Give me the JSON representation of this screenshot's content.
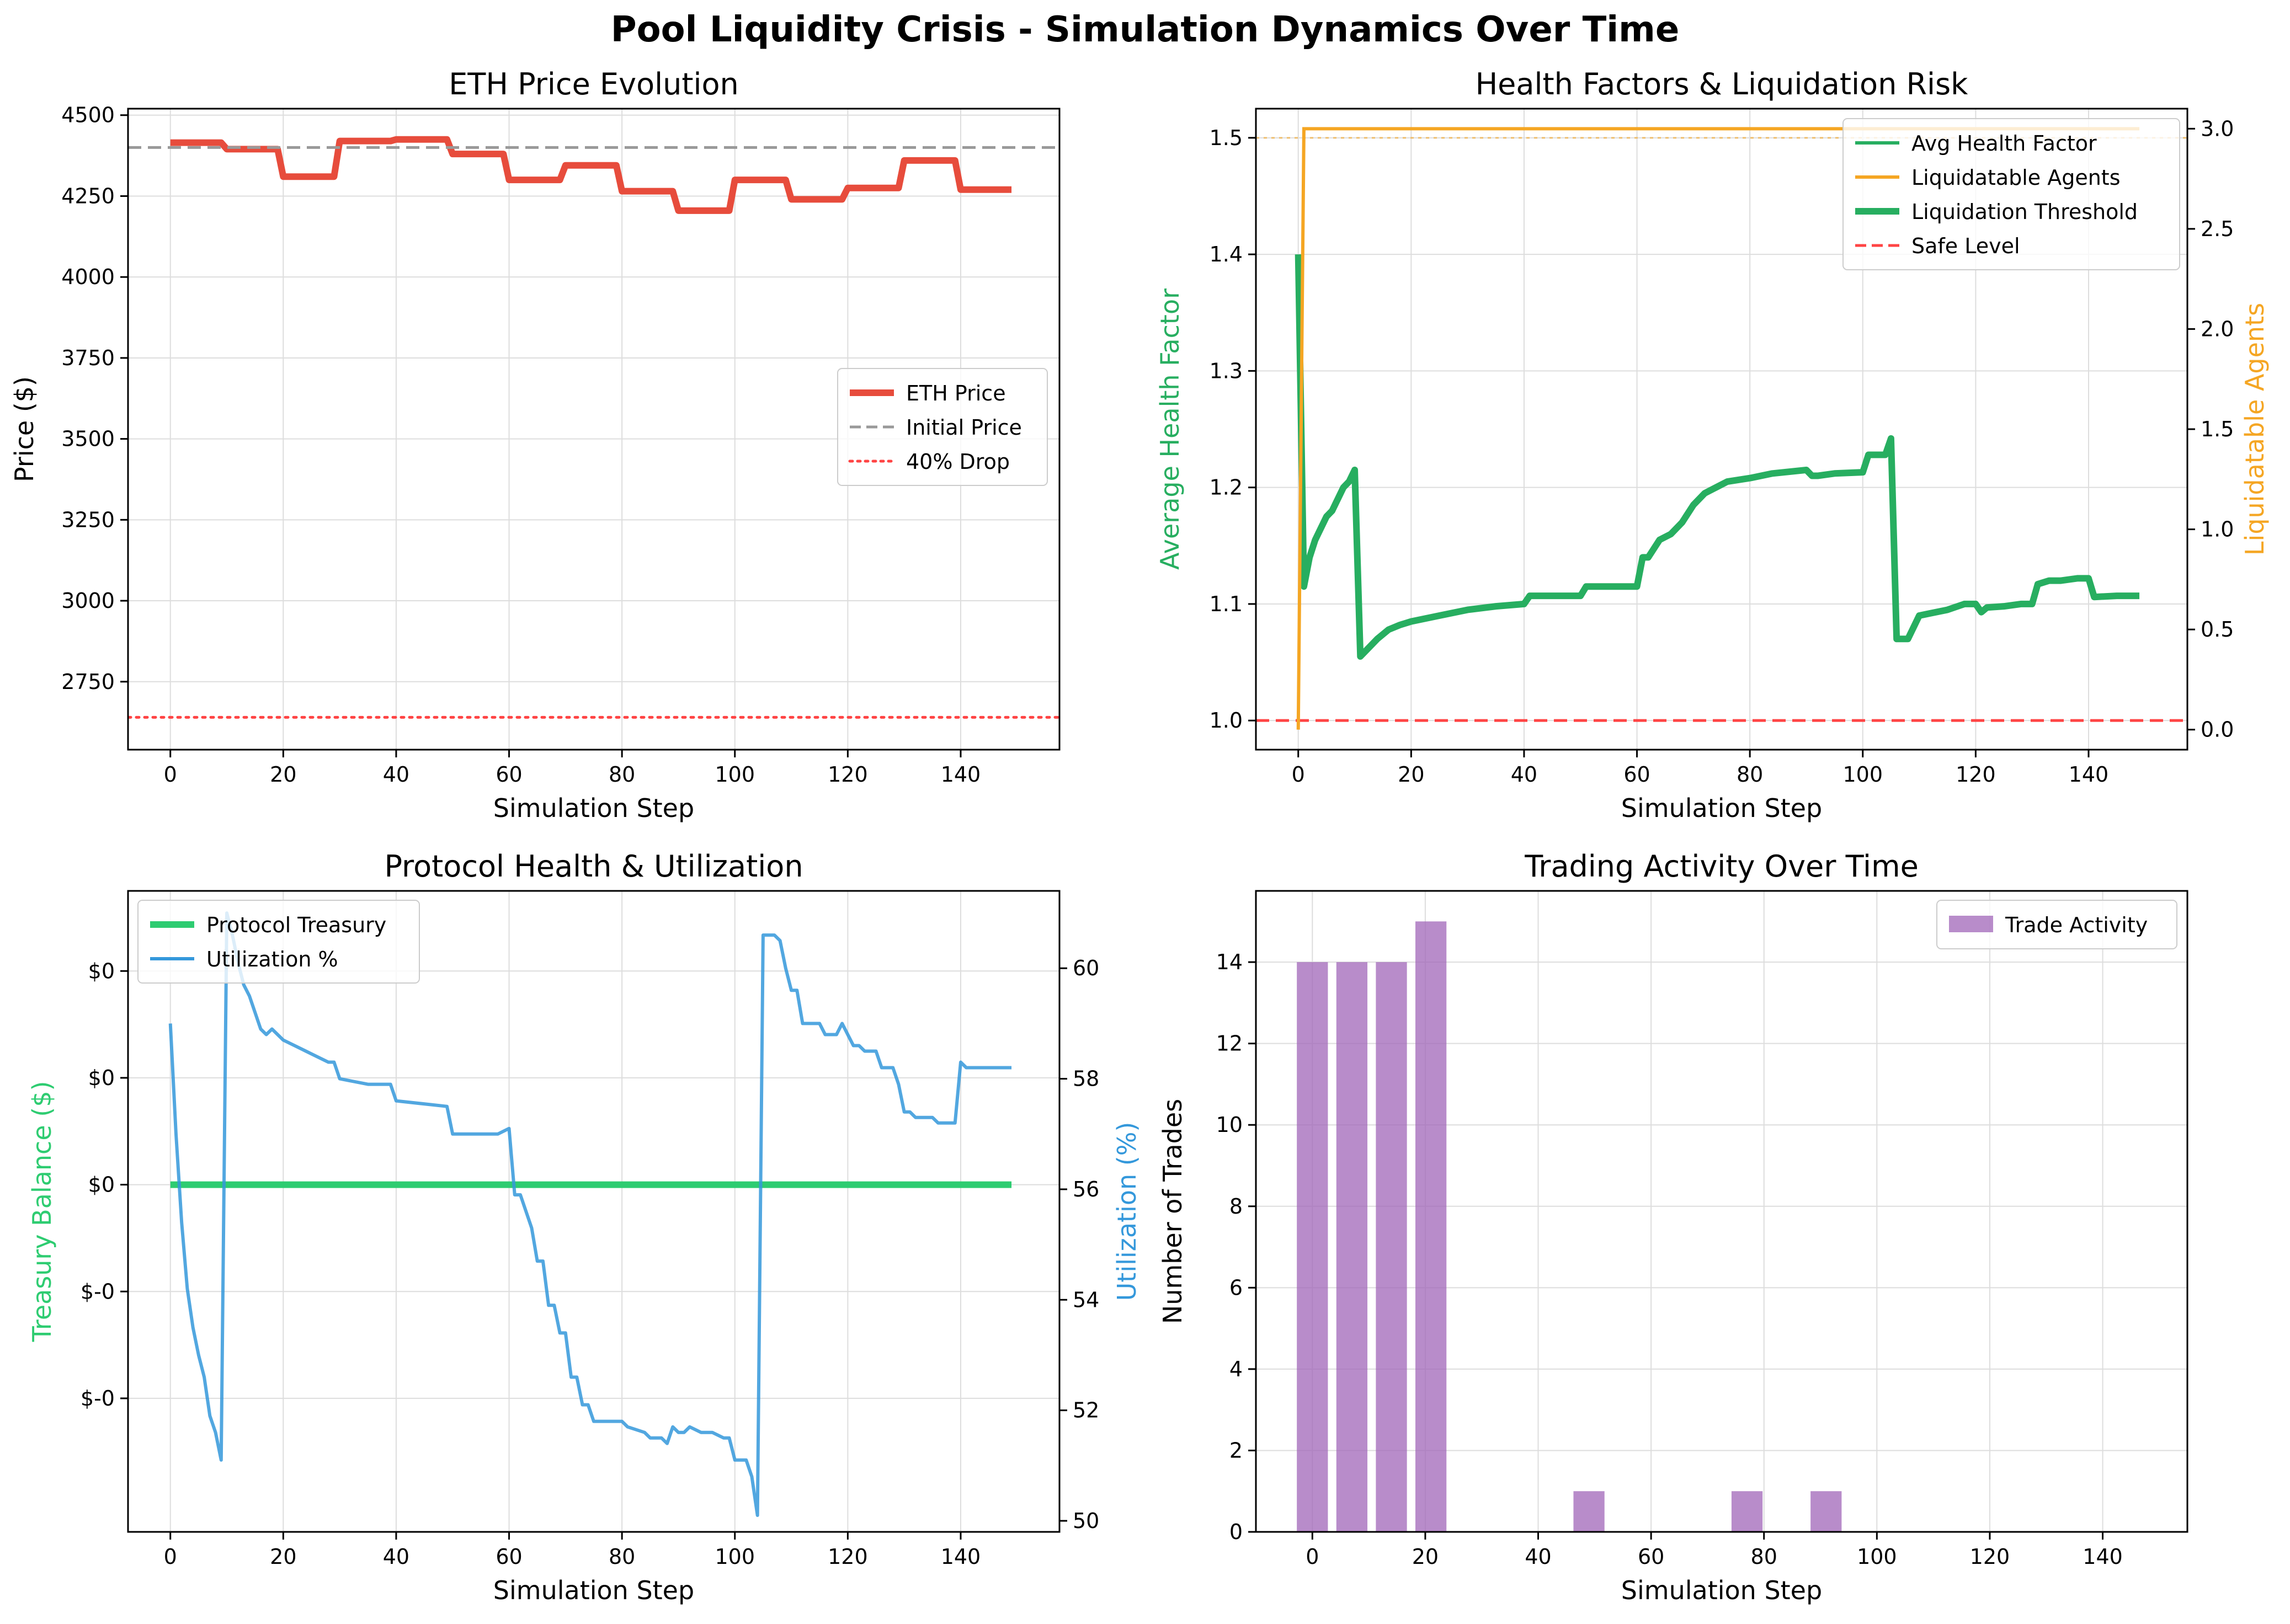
{
  "title": "Pool Liquidity Crisis - Simulation Dynamics Over Time",
  "colors": {
    "eth_price": "#e74c3c",
    "initial_price": "#999999",
    "drop_line": "#ff4444",
    "health": "#27ae60",
    "liquidatable": "#f5a623",
    "safe_level": "#ff4444",
    "treasury": "#2ecc71",
    "utilization": "#3498db",
    "trades": "#a066b8",
    "grid": "#dddddd"
  },
  "chart_data": [
    {
      "id": "eth",
      "type": "line",
      "title": "ETH Price Evolution",
      "xlabel": "Simulation Step",
      "ylabel": "Price ($)",
      "xlim": [
        -7.5,
        157.5
      ],
      "ylim": [
        2540,
        4520
      ],
      "x_ticks": [
        0,
        20,
        40,
        60,
        80,
        100,
        120,
        140
      ],
      "y_ticks": [
        2750,
        3000,
        3250,
        3500,
        3750,
        4000,
        4250,
        4500
      ],
      "y_tick_labels": [
        "2750",
        "3000",
        "3250",
        "3500",
        "3750",
        "4000",
        "4250",
        "4500"
      ],
      "grid": true,
      "legend_position": "center-right",
      "series": [
        {
          "name": "ETH Price",
          "style": "solid",
          "steps": [
            [
              0,
              4415
            ],
            [
              10,
              4395
            ],
            [
              20,
              4310
            ],
            [
              30,
              4420
            ],
            [
              40,
              4425
            ],
            [
              50,
              4380
            ],
            [
              60,
              4300
            ],
            [
              70,
              4345
            ],
            [
              80,
              4265
            ],
            [
              90,
              4205
            ],
            [
              100,
              4300
            ],
            [
              110,
              4240
            ],
            [
              120,
              4275
            ],
            [
              130,
              4360
            ],
            [
              140,
              4270
            ]
          ],
          "x_end": 149
        },
        {
          "name": "Initial Price",
          "style": "dashed",
          "y": 4400
        },
        {
          "name": "40% Drop",
          "style": "dotted",
          "y": 2640
        }
      ]
    },
    {
      "id": "health",
      "type": "line",
      "title": "Health Factors & Liquidation Risk",
      "xlabel": "Simulation Step",
      "ylabel": "Average Health Factor",
      "ylabel_right": "Liquidatable Agents",
      "xlim": [
        -7.5,
        157.5
      ],
      "ylim": [
        0.975,
        1.525
      ],
      "ylim_right": [
        -0.1,
        3.1
      ],
      "x_ticks": [
        0,
        20,
        40,
        60,
        80,
        100,
        120,
        140
      ],
      "y_ticks": [
        1.0,
        1.1,
        1.2,
        1.3,
        1.4,
        1.5
      ],
      "y_tick_labels": [
        "1.0",
        "1.1",
        "1.2",
        "1.3",
        "1.4",
        "1.5"
      ],
      "y_ticks_right": [
        0.0,
        0.5,
        1.0,
        1.5,
        2.0,
        2.5,
        3.0
      ],
      "y_tick_labels_right": [
        "0.0",
        "0.5",
        "1.0",
        "1.5",
        "2.0",
        "2.5",
        "3.0"
      ],
      "grid": true,
      "legend_position": "top-right",
      "series": [
        {
          "name": "Avg Health Factor",
          "x": [
            0,
            1,
            2,
            3,
            4,
            5,
            6,
            7,
            8,
            9,
            10,
            11,
            12,
            14,
            16,
            18,
            20,
            25,
            30,
            35,
            40,
            41,
            50,
            51,
            60,
            61,
            62,
            64,
            66,
            68,
            70,
            72,
            74,
            76,
            80,
            82,
            84,
            86,
            88,
            90,
            91,
            92,
            95,
            100,
            101,
            104,
            105,
            106,
            108,
            110,
            112,
            115,
            118,
            120,
            121,
            122,
            125,
            128,
            130,
            131,
            133,
            135,
            138,
            140,
            141,
            145,
            149
          ],
          "y": [
            1.4,
            1.115,
            1.14,
            1.155,
            1.165,
            1.175,
            1.18,
            1.19,
            1.2,
            1.205,
            1.215,
            1.055,
            1.06,
            1.07,
            1.078,
            1.082,
            1.085,
            1.09,
            1.095,
            1.098,
            1.1,
            1.107,
            1.107,
            1.115,
            1.115,
            1.14,
            1.14,
            1.155,
            1.16,
            1.17,
            1.185,
            1.195,
            1.2,
            1.205,
            1.208,
            1.21,
            1.212,
            1.213,
            1.214,
            1.215,
            1.21,
            1.21,
            1.212,
            1.213,
            1.228,
            1.228,
            1.242,
            1.07,
            1.07,
            1.09,
            1.092,
            1.095,
            1.1,
            1.1,
            1.093,
            1.097,
            1.098,
            1.1,
            1.1,
            1.117,
            1.12,
            1.12,
            1.122,
            1.122,
            1.106,
            1.107,
            1.107
          ]
        },
        {
          "name": "Liquidatable Agents",
          "axis": "right",
          "x": [
            0,
            1,
            149
          ],
          "y": [
            0,
            3,
            3
          ]
        },
        {
          "name": "Liquidation Threshold",
          "style": "thick"
        },
        {
          "name": "Safe Level",
          "style": "dashed",
          "y": 1.0
        }
      ]
    },
    {
      "id": "protocol",
      "type": "line",
      "title": "Protocol Health & Utilization",
      "xlabel": "Simulation Step",
      "ylabel": "Treasury Balance ($)",
      "ylabel_right": "Utilization (%)",
      "xlim": [
        -7.5,
        157.5
      ],
      "ylim": [
        -0.065,
        0.055
      ],
      "ylim_right": [
        49.8,
        61.4
      ],
      "x_ticks": [
        0,
        20,
        40,
        60,
        80,
        100,
        120,
        140
      ],
      "y_ticks": [
        -0.04,
        -0.02,
        0.0,
        0.02,
        0.04
      ],
      "y_tick_labels": [
        "$-0",
        "$-0",
        "$0",
        "$0",
        "$0"
      ],
      "y_ticks_right": [
        50,
        52,
        54,
        56,
        58,
        60
      ],
      "y_tick_labels_right": [
        "50",
        "52",
        "54",
        "56",
        "58",
        "60"
      ],
      "grid": true,
      "legend_position": "top-left",
      "series": [
        {
          "name": "Protocol Treasury",
          "x": [
            0,
            149
          ],
          "y": [
            0,
            0
          ]
        },
        {
          "name": "Utilization %",
          "axis": "right",
          "x": [
            0,
            1,
            2,
            3,
            4,
            5,
            6,
            7,
            8,
            9,
            10,
            11,
            12,
            13,
            14,
            15,
            16,
            17,
            18,
            19,
            20,
            22,
            24,
            26,
            28,
            29,
            30,
            35,
            39,
            40,
            49,
            50,
            58,
            60,
            61,
            62,
            64,
            65,
            66,
            67,
            68,
            69,
            70,
            71,
            72,
            73,
            74,
            75,
            76,
            77,
            80,
            81,
            84,
            85,
            87,
            88,
            89,
            90,
            91,
            92,
            94,
            96,
            98,
            99,
            100,
            101,
            102,
            103,
            104,
            105,
            106,
            107,
            108,
            109,
            110,
            111,
            112,
            113,
            115,
            116,
            118,
            119,
            120,
            121,
            122,
            123,
            125,
            126,
            128,
            129,
            130,
            131,
            132,
            133,
            135,
            136,
            137,
            138,
            139,
            140,
            141,
            145,
            149
          ],
          "y": [
            59.0,
            57.0,
            55.4,
            54.2,
            53.5,
            53.0,
            52.6,
            51.9,
            51.6,
            51.1,
            61.0,
            60.6,
            60.1,
            59.7,
            59.5,
            59.2,
            58.9,
            58.8,
            58.9,
            58.8,
            58.7,
            58.6,
            58.5,
            58.4,
            58.3,
            58.3,
            58.0,
            57.9,
            57.9,
            57.6,
            57.5,
            57.0,
            57.0,
            57.1,
            55.9,
            55.9,
            55.3,
            54.7,
            54.7,
            53.9,
            53.9,
            53.4,
            53.4,
            52.6,
            52.6,
            52.1,
            52.1,
            51.8,
            51.8,
            51.8,
            51.8,
            51.7,
            51.6,
            51.5,
            51.5,
            51.4,
            51.7,
            51.6,
            51.6,
            51.7,
            51.6,
            51.6,
            51.5,
            51.5,
            51.1,
            51.1,
            51.1,
            50.8,
            50.1,
            60.6,
            60.6,
            60.6,
            60.5,
            60.0,
            59.6,
            59.6,
            59.0,
            59.0,
            59.0,
            58.8,
            58.8,
            59.0,
            58.8,
            58.6,
            58.6,
            58.5,
            58.5,
            58.2,
            58.2,
            57.9,
            57.4,
            57.4,
            57.3,
            57.3,
            57.3,
            57.2,
            57.2,
            57.2,
            57.2,
            58.3,
            58.2,
            58.2,
            58.2
          ]
        }
      ]
    },
    {
      "id": "trades",
      "type": "bar",
      "title": "Trading Activity Over Time",
      "xlabel": "Simulation Step",
      "ylabel": "Number of Trades",
      "xlim": [
        -10,
        155
      ],
      "ylim": [
        0,
        15.75
      ],
      "bar_width": 5.5,
      "x_ticks": [
        0,
        20,
        40,
        60,
        80,
        100,
        120,
        140
      ],
      "y_ticks": [
        0,
        2,
        4,
        6,
        8,
        10,
        12,
        14
      ],
      "y_tick_labels": [
        "0",
        "2",
        "4",
        "6",
        "8",
        "10",
        "12",
        "14"
      ],
      "grid": true,
      "legend_position": "top-right",
      "series": [
        {
          "name": "Trade Activity",
          "x": [
            0,
            7,
            14,
            21,
            49,
            77,
            91
          ],
          "values": [
            14,
            14,
            14,
            15,
            1,
            1,
            1
          ]
        }
      ]
    }
  ]
}
